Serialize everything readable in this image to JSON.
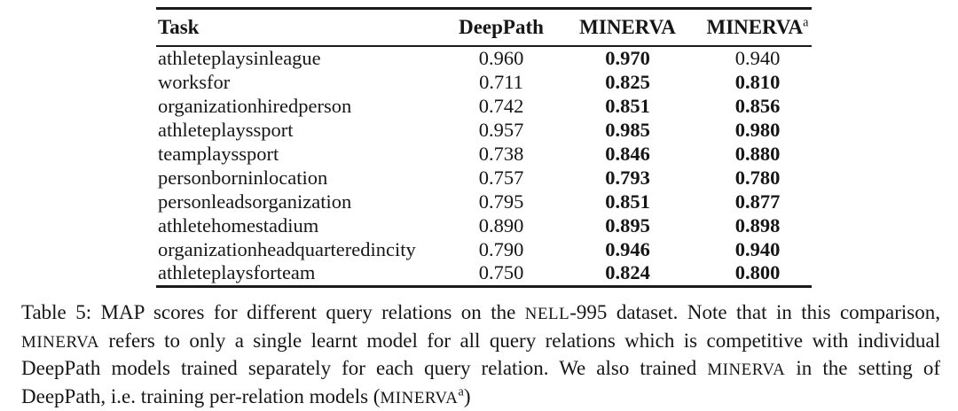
{
  "page": {
    "background": "#ffffff",
    "text_color": "#161616",
    "rule_color": "#1a1a1a"
  },
  "table": {
    "header": {
      "task": "Task",
      "deeppath": "DeepPath",
      "minerva": "MINERVA",
      "minerva_a": {
        "base": "MINERVA",
        "sup": "a"
      }
    },
    "rows": [
      {
        "task": "athleteplaysinleague",
        "deeppath": {
          "value": "0.960",
          "bold": false
        },
        "minerva": {
          "value": "0.970",
          "bold": true
        },
        "minerva_a": {
          "value": "0.940",
          "bold": false
        }
      },
      {
        "task": "worksfor",
        "deeppath": {
          "value": "0.711",
          "bold": false
        },
        "minerva": {
          "value": "0.825",
          "bold": true
        },
        "minerva_a": {
          "value": "0.810",
          "bold": true
        }
      },
      {
        "task": "organizationhiredperson",
        "deeppath": {
          "value": "0.742",
          "bold": false
        },
        "minerva": {
          "value": "0.851",
          "bold": true
        },
        "minerva_a": {
          "value": "0.856",
          "bold": true
        }
      },
      {
        "task": "athleteplayssport",
        "deeppath": {
          "value": "0.957",
          "bold": false
        },
        "minerva": {
          "value": "0.985",
          "bold": true
        },
        "minerva_a": {
          "value": "0.980",
          "bold": true
        }
      },
      {
        "task": "teamplayssport",
        "deeppath": {
          "value": "0.738",
          "bold": false
        },
        "minerva": {
          "value": "0.846",
          "bold": true
        },
        "minerva_a": {
          "value": "0.880",
          "bold": true
        }
      },
      {
        "task": "personborninlocation",
        "deeppath": {
          "value": "0.757",
          "bold": false
        },
        "minerva": {
          "value": "0.793",
          "bold": true
        },
        "minerva_a": {
          "value": "0.780",
          "bold": true
        }
      },
      {
        "task": "personleadsorganization",
        "deeppath": {
          "value": "0.795",
          "bold": false
        },
        "minerva": {
          "value": "0.851",
          "bold": true
        },
        "minerva_a": {
          "value": "0.877",
          "bold": true
        }
      },
      {
        "task": "athletehomestadium",
        "deeppath": {
          "value": "0.890",
          "bold": false
        },
        "minerva": {
          "value": "0.895",
          "bold": true
        },
        "minerva_a": {
          "value": "0.898",
          "bold": true
        }
      },
      {
        "task": "organizationheadquarteredincity",
        "deeppath": {
          "value": "0.790",
          "bold": false
        },
        "minerva": {
          "value": "0.946",
          "bold": true
        },
        "minerva_a": {
          "value": "0.940",
          "bold": true
        }
      },
      {
        "task": "athleteplaysforteam",
        "deeppath": {
          "value": "0.750",
          "bold": false
        },
        "minerva": {
          "value": "0.824",
          "bold": true
        },
        "minerva_a": {
          "value": "0.800",
          "bold": true
        }
      }
    ]
  },
  "caption": {
    "segments": [
      {
        "text": "Table 5: MAP scores for different query relations on the ",
        "style": "normal"
      },
      {
        "text": "NELL",
        "style": "sc"
      },
      {
        "text": "-995 dataset. Note that in this comparison, ",
        "style": "normal"
      },
      {
        "text": "MINERVA",
        "style": "sc"
      },
      {
        "text": " refers to only a single learnt model for all query relations which is competitive with individual DeepPath models trained separately for each query relation. We also trained ",
        "style": "normal"
      },
      {
        "text": "MINERVA",
        "style": "sc"
      },
      {
        "text": " in the setting of DeepPath, i.e. training per-relation models (",
        "style": "normal"
      },
      {
        "text": "MINERVA",
        "style": "sc"
      },
      {
        "text": "a",
        "style": "sup"
      },
      {
        "text": ")",
        "style": "normal"
      }
    ]
  }
}
